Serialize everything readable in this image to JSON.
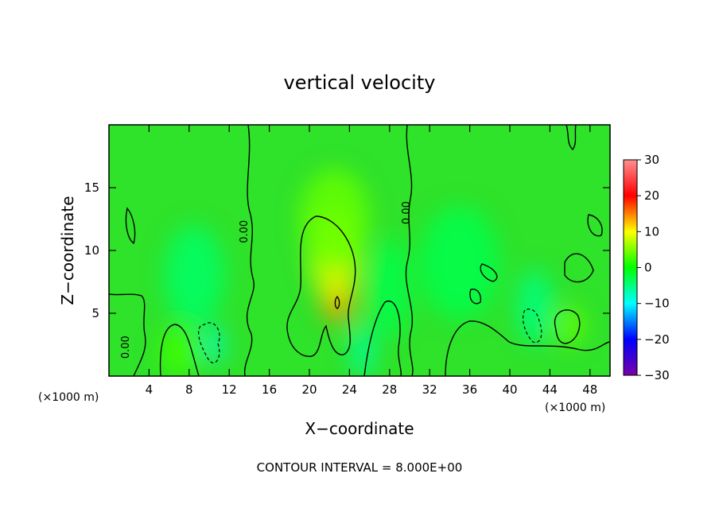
{
  "chart_data": {
    "type": "heatmap",
    "title": "vertical velocity",
    "xlabel": "X−coordinate",
    "ylabel": "Z−coordinate",
    "x_unit_left": "(×1000 m)",
    "x_unit_right": "(×1000 m)",
    "xlim": [
      0,
      50
    ],
    "ylim": [
      0,
      20
    ],
    "x_ticks": [
      4,
      8,
      12,
      16,
      20,
      24,
      28,
      32,
      36,
      40,
      44,
      48
    ],
    "y_ticks": [
      5,
      10,
      15
    ],
    "colorbar": {
      "range": [
        -30,
        30
      ],
      "ticks": [
        30,
        20,
        10,
        0,
        -10,
        -20,
        -30
      ],
      "tick_labels": [
        "30",
        "20",
        "10",
        "0",
        "−10",
        "−20",
        "−30"
      ],
      "colors": [
        "#7a00a8",
        "#0000ff",
        "#00ffff",
        "#00ff00",
        "#ffff00",
        "#ff0000",
        "#ff9090"
      ]
    },
    "contour_interval_text": "CONTOUR INTERVAL = 8.000E+00",
    "contour_labels": [
      {
        "text": "0.00",
        "x": 13.8,
        "z": 11.5
      },
      {
        "text": "0.00",
        "x": 30.0,
        "z": 13.0
      },
      {
        "text": "0.00",
        "x": 2.0,
        "z": 2.3
      }
    ],
    "features": [
      {
        "kind": "updraft",
        "x": 22.8,
        "z": 6.6,
        "sx": 1.7,
        "sz": 2.4,
        "value": 14
      },
      {
        "kind": "updraft",
        "x": 22.5,
        "z": 9.5,
        "sx": 2.6,
        "sz": 3.5,
        "value": 8
      },
      {
        "kind": "updraft",
        "x": 22.5,
        "z": 12.5,
        "sx": 3.5,
        "sz": 4.0,
        "value": 4
      },
      {
        "kind": "updraft",
        "x": 46.0,
        "z": 4.0,
        "sx": 1.4,
        "sz": 1.6,
        "value": 4
      },
      {
        "kind": "updraft",
        "x": 7.0,
        "z": 2.0,
        "sx": 2.0,
        "sz": 2.0,
        "value": 2.5
      },
      {
        "kind": "downdraft",
        "x": 10.5,
        "z": 2.5,
        "sx": 1.0,
        "sz": 1.4,
        "value": -8
      },
      {
        "kind": "downdraft",
        "x": 8.5,
        "z": 8.0,
        "sx": 3.0,
        "sz": 4.0,
        "value": -4
      },
      {
        "kind": "downdraft",
        "x": 25.3,
        "z": 2.0,
        "sx": 1.2,
        "sz": 2.2,
        "value": -6
      },
      {
        "kind": "downdraft",
        "x": 42.5,
        "z": 5.5,
        "sx": 1.8,
        "sz": 3.0,
        "value": -5
      },
      {
        "kind": "downdraft",
        "x": 35.0,
        "z": 9.0,
        "sx": 4.0,
        "sz": 4.5,
        "value": -3
      },
      {
        "kind": "downdraft",
        "x": 28.0,
        "z": 7.0,
        "sx": 2.0,
        "sz": 4.0,
        "value": -3
      }
    ],
    "grid": false,
    "legend": "colorbar-right"
  }
}
